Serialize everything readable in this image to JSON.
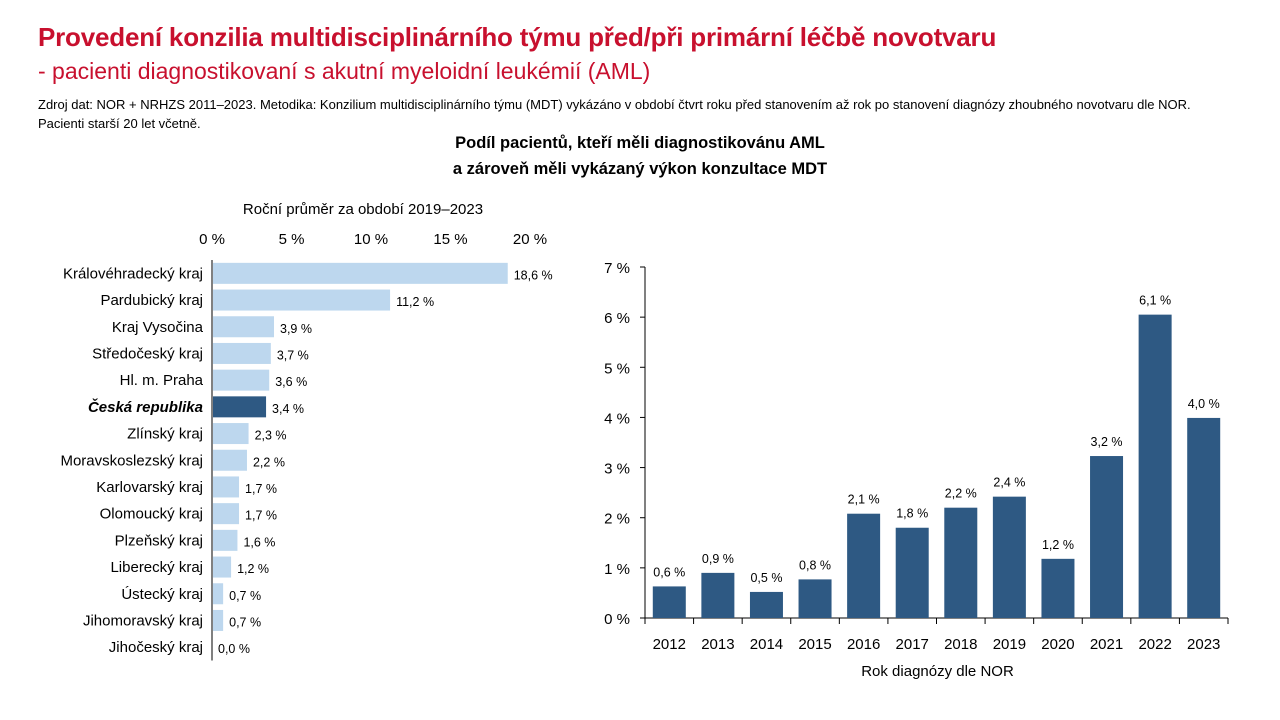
{
  "header": {
    "title": "Provedení konzilia multidisciplinárního týmu před/při primární léčbě novotvaru",
    "subtitle": "- pacienti diagnostikovaní s akutní myeloidní leukémií (AML)",
    "source": "Zdroj dat: NOR + NRHZS 2011–2023. Metodika: Konzilium multidisciplinárního týmu (MDT) vykázáno v období čtvrt roku před stanovením až rok po stanovení diagnózy zhoubného novotvaru dle NOR. Pacienti starší 20 let včetně."
  },
  "chart_heading": {
    "line1": "Podíl pacientů, kteří měli diagnostikovánu AML",
    "line2": "a zároveň měli vykázaný výkon konzultace MDT"
  },
  "colors": {
    "title": "#c8102e",
    "bar_light": "#bdd7ee",
    "bar_dark": "#2e5983",
    "axis": "#000000"
  },
  "chart_data": [
    {
      "type": "bar",
      "orientation": "horizontal",
      "axis_title": "Roční průměr za období 2019–2023",
      "xlim": [
        0,
        20
      ],
      "ticks": [
        "0 %",
        "5 %",
        "10 %",
        "15 %",
        "20 %"
      ],
      "categories": [
        "Královéhradecký kraj",
        "Pardubický kraj",
        "Kraj Vysočina",
        "Středočeský kraj",
        "Hl. m. Praha",
        "Česká republika",
        "Zlínský kraj",
        "Moravskoslezský kraj",
        "Karlovarský kraj",
        "Olomoucký kraj",
        "Plzeňský kraj",
        "Liberecký kraj",
        "Ústecký kraj",
        "Jihomoravský kraj",
        "Jihočeský kraj"
      ],
      "values": [
        18.6,
        11.2,
        3.9,
        3.7,
        3.6,
        3.4,
        2.3,
        2.2,
        1.7,
        1.7,
        1.6,
        1.2,
        0.7,
        0.7,
        0.0
      ],
      "labels": [
        "18,6 %",
        "11,2 %",
        "3,9 %",
        "3,7 %",
        "3,6 %",
        "3,4 %",
        "2,3 %",
        "2,2 %",
        "1,7 %",
        "1,7 %",
        "1,6 %",
        "1,2 %",
        "0,7 %",
        "0,7 %",
        "0,0 %"
      ],
      "highlight": "Česká republika"
    },
    {
      "type": "bar",
      "orientation": "vertical",
      "xlabel": "Rok diagnózy dle NOR",
      "ylim": [
        0,
        7
      ],
      "ticks": [
        "0 %",
        "1 %",
        "2 %",
        "3 %",
        "4 %",
        "5 %",
        "6 %",
        "7 %"
      ],
      "categories": [
        "2012",
        "2013",
        "2014",
        "2015",
        "2016",
        "2017",
        "2018",
        "2019",
        "2020",
        "2021",
        "2022",
        "2023"
      ],
      "values": [
        0.63,
        0.9,
        0.52,
        0.77,
        2.08,
        1.8,
        2.2,
        2.42,
        1.18,
        3.23,
        6.05,
        3.99
      ],
      "labels": [
        "0,6 %",
        "0,9 %",
        "0,5 %",
        "0,8 %",
        "2,1 %",
        "1,8 %",
        "2,2 %",
        "2,4 %",
        "1,2 %",
        "3,2 %",
        "6,1 %",
        "4,0 %"
      ]
    }
  ]
}
